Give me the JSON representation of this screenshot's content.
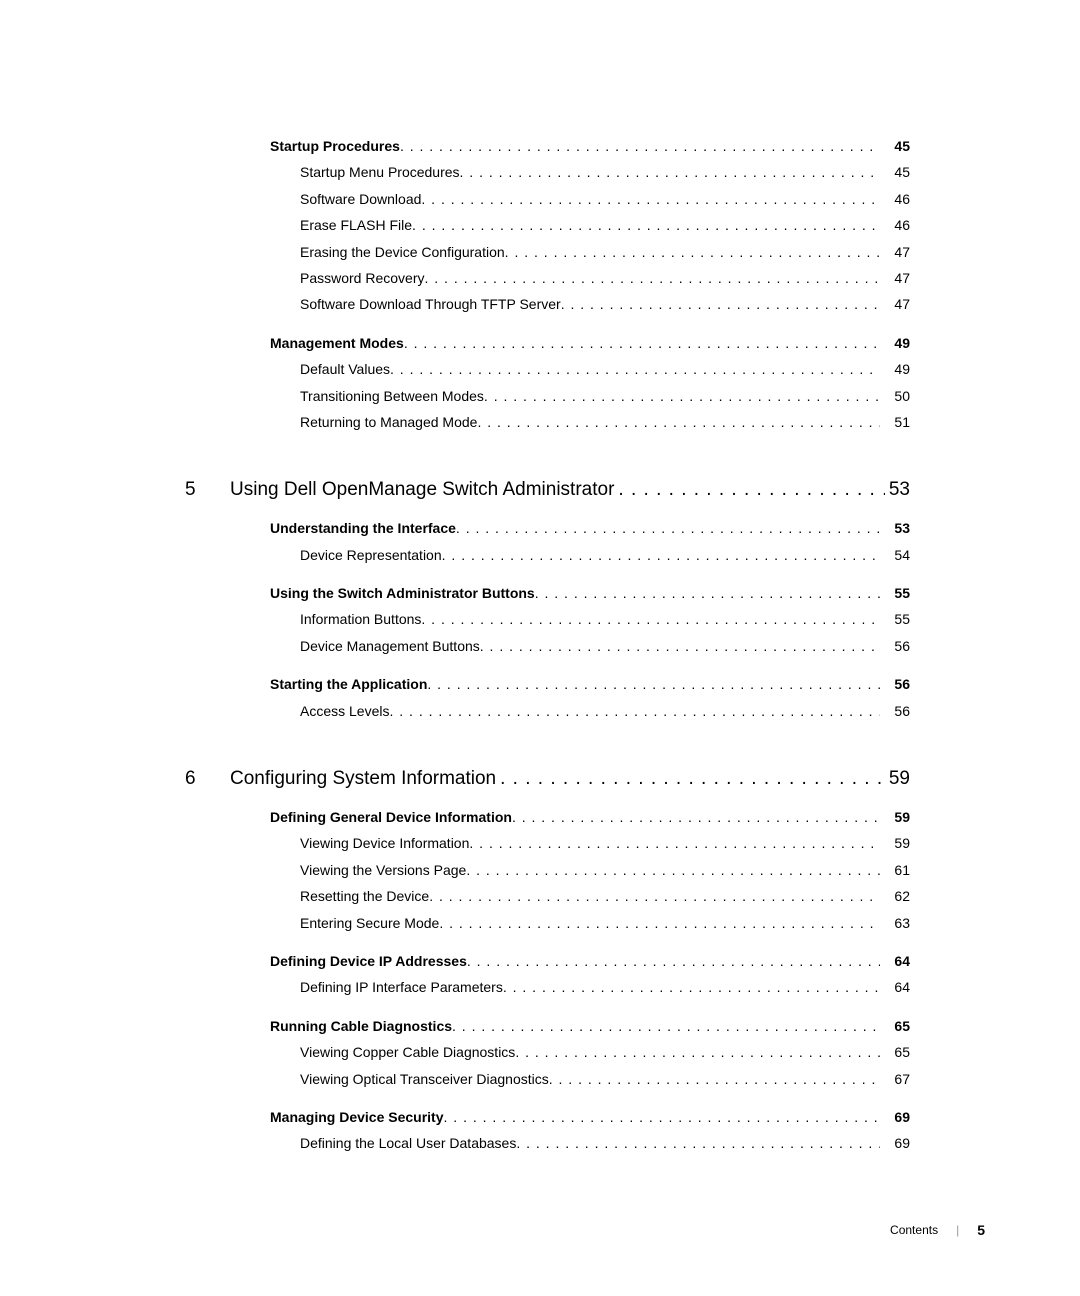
{
  "sections": [
    {
      "type": "heading",
      "label": "Startup Procedures",
      "page": "45",
      "indent": 1,
      "gap": false
    },
    {
      "type": "item",
      "label": "Startup Menu Procedures",
      "page": "45",
      "indent": 2
    },
    {
      "type": "item",
      "label": "Software Download",
      "page": "46",
      "indent": 2
    },
    {
      "type": "item",
      "label": "Erase FLASH File",
      "page": "46",
      "indent": 2
    },
    {
      "type": "item",
      "label": "Erasing the Device Configuration",
      "page": "47",
      "indent": 2
    },
    {
      "type": "item",
      "label": "Password Recovery",
      "page": "47",
      "indent": 2
    },
    {
      "type": "item",
      "label": "Software Download Through TFTP Server",
      "page": "47",
      "indent": 2
    },
    {
      "type": "heading",
      "label": "Management Modes",
      "page": "49",
      "indent": 1,
      "gap": true
    },
    {
      "type": "item",
      "label": "Default Values",
      "page": "49",
      "indent": 2
    },
    {
      "type": "item",
      "label": "Transitioning Between Modes",
      "page": "50",
      "indent": 2
    },
    {
      "type": "item",
      "label": "Returning to Managed Mode",
      "page": "51",
      "indent": 2
    },
    {
      "type": "chapter",
      "num": "5",
      "label": "Using Dell OpenManage Switch Administrator",
      "page": "53"
    },
    {
      "type": "heading",
      "label": "Understanding the Interface",
      "page": "53",
      "indent": 1,
      "gap": true
    },
    {
      "type": "item",
      "label": "Device Representation",
      "page": "54",
      "indent": 2
    },
    {
      "type": "heading",
      "label": "Using the Switch Administrator Buttons",
      "page": "55",
      "indent": 1,
      "gap": true
    },
    {
      "type": "item",
      "label": "Information Buttons",
      "page": "55",
      "indent": 2
    },
    {
      "type": "item",
      "label": "Device Management Buttons",
      "page": "56",
      "indent": 2
    },
    {
      "type": "heading",
      "label": "Starting the Application",
      "page": "56",
      "indent": 1,
      "gap": true
    },
    {
      "type": "item",
      "label": "Access Levels",
      "page": "56",
      "indent": 2
    },
    {
      "type": "chapter",
      "num": "6",
      "label": "Configuring System Information",
      "page": "59"
    },
    {
      "type": "heading",
      "label": "Defining General Device Information",
      "page": "59",
      "indent": 1,
      "gap": true
    },
    {
      "type": "item",
      "label": "Viewing Device Information",
      "page": "59",
      "indent": 2
    },
    {
      "type": "item",
      "label": "Viewing the Versions Page",
      "page": "61",
      "indent": 2
    },
    {
      "type": "item",
      "label": "Resetting the Device",
      "page": "62",
      "indent": 2
    },
    {
      "type": "item",
      "label": "Entering Secure Mode",
      "page": "63",
      "indent": 2
    },
    {
      "type": "heading",
      "label": "Defining Device IP Addresses",
      "page": "64",
      "indent": 1,
      "gap": true
    },
    {
      "type": "item",
      "label": "Defining IP Interface Parameters",
      "page": "64",
      "indent": 2
    },
    {
      "type": "heading",
      "label": "Running Cable Diagnostics",
      "page": "65",
      "indent": 1,
      "gap": true
    },
    {
      "type": "item",
      "label": "Viewing Copper Cable Diagnostics",
      "page": "65",
      "indent": 2
    },
    {
      "type": "item",
      "label": "Viewing Optical Transceiver Diagnostics",
      "page": "67",
      "indent": 2
    },
    {
      "type": "heading",
      "label": "Managing Device Security",
      "page": "69",
      "indent": 1,
      "gap": true
    },
    {
      "type": "item",
      "label": "Defining the Local User Databases",
      "page": "69",
      "indent": 2
    }
  ],
  "footer": {
    "label": "Contents",
    "page": "5"
  }
}
